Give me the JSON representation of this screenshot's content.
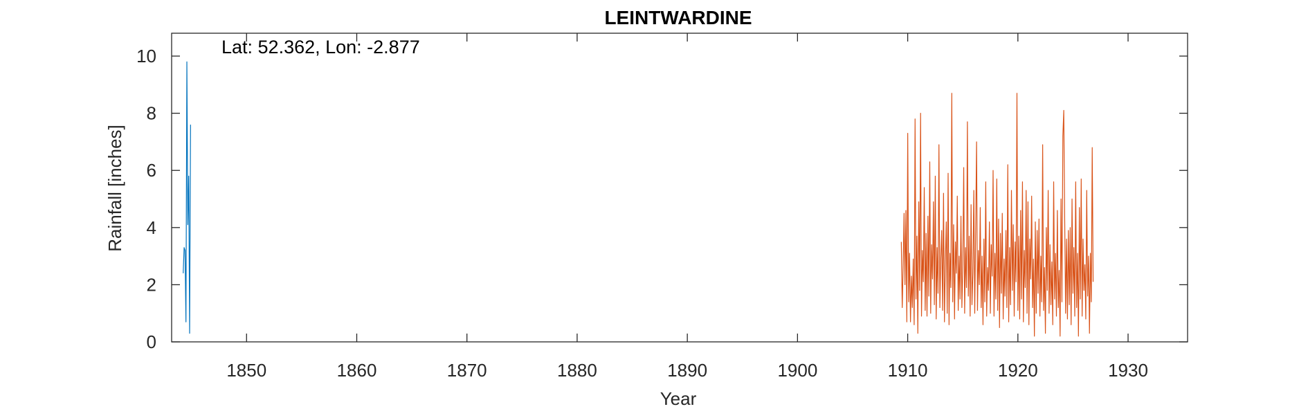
{
  "chart_data": {
    "type": "line",
    "title": "LEINTWARDINE",
    "xlabel": "Year",
    "ylabel": "Rainfall [inches]",
    "xlim": [
      1843.2,
      1935.4
    ],
    "ylim": [
      0,
      10.8
    ],
    "x_ticks": [
      1850,
      1860,
      1870,
      1880,
      1890,
      1900,
      1910,
      1920,
      1930
    ],
    "y_ticks": [
      0,
      2,
      4,
      6,
      8,
      10
    ],
    "grid": false,
    "annotation": "Lat: 52.362, Lon: -2.877",
    "series": [
      {
        "color": "#0072BD",
        "x_start": 1844.25,
        "x_step": 0.0833,
        "values": [
          2.4,
          3.3,
          3.2,
          0.7,
          9.8,
          4.1,
          5.8,
          0.3,
          7.6
        ]
      },
      {
        "color": "#D95319",
        "x_start": 1909.42,
        "x_step": 0.0833,
        "values": [
          3.5,
          1.2,
          2.6,
          4.5,
          2.0,
          4.6,
          0.7,
          7.3,
          1.4,
          3.1,
          0.7,
          2.3,
          1.2,
          2.9,
          0.6,
          7.8,
          1.5,
          3.7,
          0.3,
          4.9,
          1.8,
          8.0,
          0.9,
          3.2,
          2.1,
          5.4,
          1.1,
          3.8,
          0.9,
          4.4,
          1.6,
          6.3,
          1.0,
          3.4,
          2.2,
          4.9,
          1.3,
          5.8,
          0.8,
          3.3,
          1.7,
          6.9,
          1.2,
          2.9,
          3.9,
          1.1,
          5.2,
          0.7,
          2.8,
          4.2,
          1.0,
          5.9,
          0.6,
          3.1,
          1.9,
          8.7,
          1.4,
          4.1,
          0.8,
          3.5,
          2.4,
          5.1,
          1.1,
          3.0,
          1.5,
          4.4,
          1.2,
          2.7,
          6.1,
          1.0,
          3.3,
          1.9,
          7.7,
          1.6,
          3.7,
          0.9,
          4.8,
          1.3,
          2.4,
          5.3,
          1.0,
          3.9,
          7.0,
          1.1,
          3.2,
          2.0,
          4.7,
          1.2,
          3.0,
          0.6,
          3.6,
          1.4,
          5.6,
          0.9,
          2.6,
          1.8,
          4.2,
          1.0,
          3.4,
          2.3,
          6.0,
          0.9,
          3.1,
          1.5,
          5.7,
          1.1,
          4.3,
          0.5,
          3.8,
          1.7,
          4.5,
          0.8,
          2.9,
          1.6,
          3.9,
          1.2,
          6.2,
          0.7,
          3.3,
          1.3,
          5.3,
          1.8,
          4.1,
          0.9,
          3.5,
          2.1,
          8.7,
          1.1,
          3.7,
          0.8,
          4.6,
          1.5,
          5.6,
          0.7,
          3.2,
          1.9,
          5.3,
          1.0,
          4.9,
          0.6,
          3.6,
          2.2,
          5.1,
          1.2,
          2.9,
          0.2,
          4.2,
          1.0,
          3.9,
          1.7,
          4.3,
          0.9,
          3.0,
          1.4,
          6.9,
          1.1,
          2.6,
          0.3,
          4.0,
          1.8,
          5.3,
          1.0,
          3.4,
          1.3,
          2.8,
          0.6,
          5.6,
          1.5,
          3.1,
          0.9,
          4.6,
          1.2,
          2.5,
          0.2,
          5.0,
          1.4,
          7.2,
          8.1,
          4.3,
          1.0,
          3.6,
          0.8,
          3.9,
          1.3,
          4.0,
          0.6,
          5.0,
          1.7,
          3.3,
          0.9,
          5.6,
          1.2,
          3.1,
          0.2,
          4.7,
          1.5,
          5.7,
          0.9,
          3.6,
          1.8,
          2.7,
          0.8,
          5.3,
          1.6,
          3.0,
          0.3,
          3.1,
          1.4,
          6.8,
          2.1
        ]
      }
    ]
  }
}
